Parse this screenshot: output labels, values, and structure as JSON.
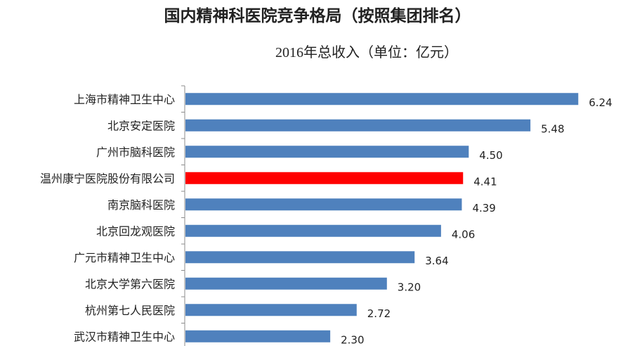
{
  "chart_data": {
    "type": "bar",
    "orientation": "horizontal",
    "title": "国内精神科医院竞争格局（按照集团排名）",
    "subtitle": "2016年总收入（单位：亿元）",
    "xlabel": "",
    "ylabel": "",
    "xlim": [
      0,
      6.65
    ],
    "grid": false,
    "legend": "none",
    "categories": [
      "上海市精神卫生中心",
      "北京安定医院",
      "广州市脑科医院",
      "温州康宁医院股份有限公司",
      "南京脑科医院",
      "北京回龙观医院",
      "广元市精神卫生中心",
      "北京大学第六医院",
      "杭州第七人民医院",
      "武汉市精神卫生中心"
    ],
    "values": [
      6.24,
      5.48,
      4.5,
      4.41,
      4.39,
      4.06,
      3.64,
      3.2,
      2.72,
      2.3
    ],
    "value_labels": [
      "6.24",
      "5.48",
      "4.50",
      "4.41",
      "4.39",
      "4.06",
      "3.64",
      "3.20",
      "2.72",
      "2.30"
    ],
    "colors": {
      "default_bar": "#4f81bd",
      "highlight_bar": "#ff0000",
      "axis_line": "#8c8c8c",
      "text": "#222222"
    },
    "highlight_index": 3
  }
}
